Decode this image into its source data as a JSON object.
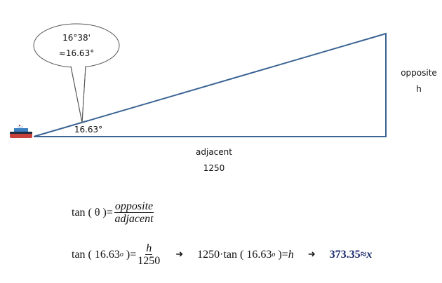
{
  "diagram": {
    "callout": {
      "line1": "16°38'",
      "line2": "≈16.63°"
    },
    "angle_label": "16.63°",
    "opposite": {
      "label": "opposite",
      "value": "h"
    },
    "adjacent": {
      "label": "adjacent",
      "value": "1250"
    },
    "boat_icon": "ship-icon",
    "line_color": "#3a6394"
  },
  "formulas": {
    "line1": {
      "lhs": "tan",
      "arg": "θ",
      "eq": "=",
      "numerator": "opposite",
      "denominator": "adjacent"
    },
    "line2": {
      "lhs": "tan",
      "arg": "16.63",
      "deg": "o",
      "eq": "=",
      "numerator": "h",
      "denominator": "1250",
      "arrow1": "➜",
      "step_coef": "1250·tan",
      "step_arg": "16.63",
      "step_deg": "o",
      "step_eq": "=",
      "step_rhs": "h",
      "arrow2": "➜",
      "result_value": "373.35",
      "result_approx": "≈",
      "result_var": "x",
      "result_color": "#1c2a6e"
    }
  }
}
